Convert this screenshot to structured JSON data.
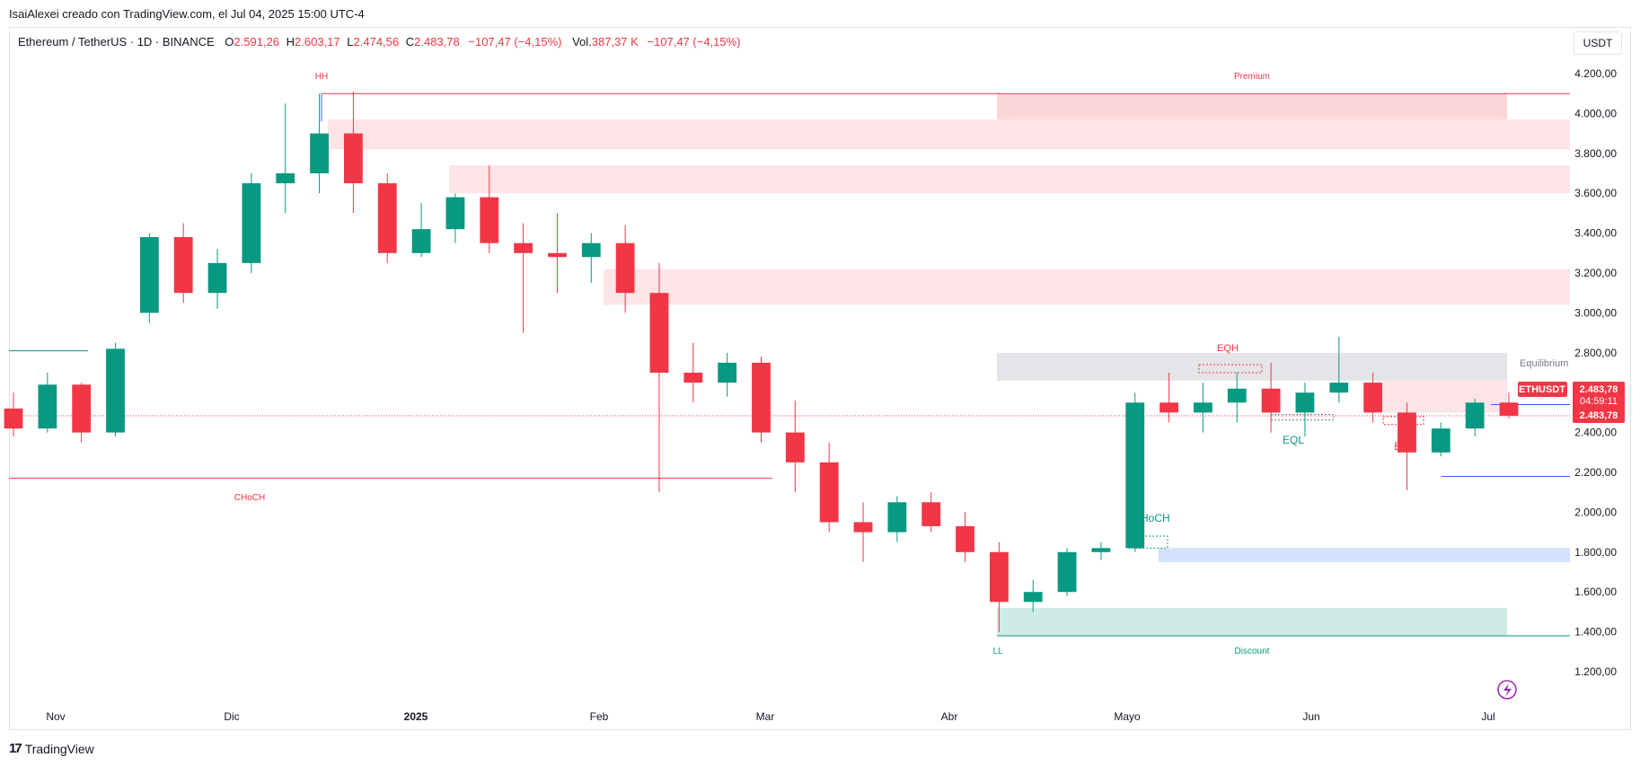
{
  "caption": "IsaiAlexei creado con TradingView.com, el Jul 04, 2025 15:00 UTC-4",
  "legend": {
    "symbol": "Ethereum / TetherUS · 1D · BINANCE",
    "open_label": "O",
    "open": "2.591,26",
    "high_label": "H",
    "high": "2.603,17",
    "low_label": "L",
    "low": "2.474,56",
    "close_label": "C",
    "close": "2.483,78",
    "change": "−107,47 (−4,15%)",
    "vol_label": "Vol.",
    "vol": "387,37 K",
    "vol_change": "−107,47 (−4,15%)"
  },
  "unit": "USDT",
  "brand": "TradingView",
  "colors": {
    "up": "#089981",
    "down": "#f23645",
    "supply": "#f23645",
    "demand": "#089981",
    "blue": "#2962ff",
    "equilibrium": "#b2b5be"
  },
  "chart_data": {
    "type": "candlestick",
    "symbol": "ETHUSDT",
    "ylim": [
      1100,
      4300
    ],
    "y_ticks": [
      "4.200,00",
      "4.000,00",
      "3.800,00",
      "3.600,00",
      "3.400,00",
      "3.200,00",
      "3.000,00",
      "2.800,00",
      "2.600,00",
      "2.400,00",
      "2.200,00",
      "2.000,00",
      "1.800,00",
      "1.600,00",
      "1.400,00",
      "1.200,00"
    ],
    "x_labels": [
      "Nov",
      "Dic",
      "2025",
      "Feb",
      "Mar",
      "Abr",
      "Mayo",
      "Jun",
      "Jul"
    ],
    "last_price_label": "2.483,78",
    "countdown": "04:59:11",
    "candles_weekly_approx": [
      [
        2520,
        2600,
        2380,
        2420
      ],
      [
        2420,
        2700,
        2400,
        2640
      ],
      [
        2640,
        2650,
        2350,
        2400
      ],
      [
        2400,
        2850,
        2380,
        2820
      ],
      [
        3000,
        3400,
        2950,
        3380
      ],
      [
        3380,
        3450,
        3050,
        3100
      ],
      [
        3100,
        3320,
        3020,
        3250
      ],
      [
        3250,
        3700,
        3200,
        3650
      ],
      [
        3650,
        4050,
        3500,
        3700
      ],
      [
        3700,
        4100,
        3600,
        3900
      ],
      [
        3900,
        4110,
        3500,
        3650
      ],
      [
        3650,
        3700,
        3250,
        3300
      ],
      [
        3300,
        3550,
        3280,
        3420
      ],
      [
        3420,
        3600,
        3350,
        3580
      ],
      [
        3580,
        3740,
        3300,
        3350
      ],
      [
        3350,
        3450,
        2900,
        3300
      ],
      [
        3300,
        3500,
        3100,
        3280
      ],
      [
        3280,
        3400,
        3150,
        3350
      ],
      [
        3350,
        3440,
        3000,
        3100
      ],
      [
        3100,
        3250,
        2100,
        2700
      ],
      [
        2700,
        2850,
        2550,
        2650
      ],
      [
        2650,
        2800,
        2580,
        2750
      ],
      [
        2750,
        2780,
        2350,
        2400
      ],
      [
        2400,
        2560,
        2100,
        2250
      ],
      [
        2250,
        2350,
        1900,
        1950
      ],
      [
        1950,
        2050,
        1750,
        1900
      ],
      [
        1900,
        2080,
        1850,
        2050
      ],
      [
        2050,
        2100,
        1900,
        1930
      ],
      [
        1930,
        2000,
        1750,
        1800
      ],
      [
        1800,
        1850,
        1400,
        1550
      ],
      [
        1550,
        1660,
        1500,
        1600
      ],
      [
        1600,
        1820,
        1580,
        1800
      ],
      [
        1800,
        1850,
        1760,
        1820
      ],
      [
        1820,
        2600,
        1800,
        2550
      ],
      [
        2550,
        2700,
        2450,
        2500
      ],
      [
        2500,
        2650,
        2400,
        2550
      ],
      [
        2550,
        2700,
        2450,
        2620
      ],
      [
        2620,
        2750,
        2400,
        2500
      ],
      [
        2500,
        2650,
        2380,
        2600
      ],
      [
        2600,
        2880,
        2550,
        2650
      ],
      [
        2650,
        2700,
        2450,
        2500
      ],
      [
        2500,
        2550,
        2110,
        2300
      ],
      [
        2300,
        2450,
        2280,
        2420
      ],
      [
        2420,
        2570,
        2380,
        2550
      ],
      [
        2550,
        2600,
        2470,
        2484
      ]
    ],
    "levels": [
      {
        "label": "HH",
        "price": 4100
      },
      {
        "label": "Premium",
        "price": 4100
      },
      {
        "label": "Equilibrium",
        "price": 2650
      },
      {
        "label": "EQH",
        "price": 2730
      },
      {
        "label": "EQL",
        "price": 2480
      },
      {
        "label": "BOS",
        "price": 2440
      },
      {
        "label": "CHoCH",
        "price": 2170
      },
      {
        "label": "CHoCH",
        "price": 1860
      },
      {
        "label": "LL",
        "price": 1380
      },
      {
        "label": "Discount",
        "price": 1380
      }
    ]
  }
}
